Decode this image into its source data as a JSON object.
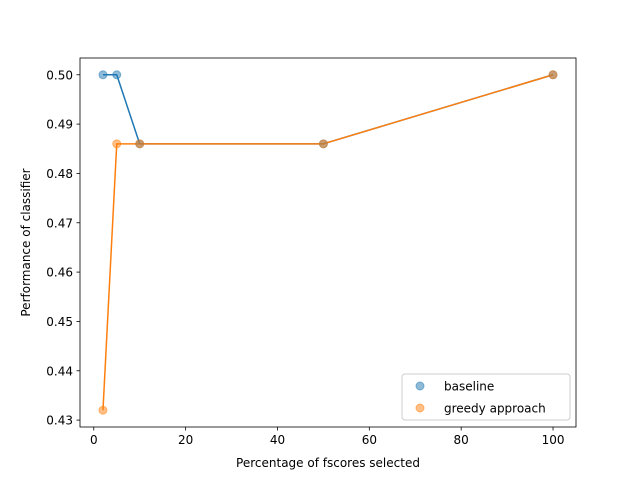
{
  "chart_data": {
    "type": "line",
    "title": "",
    "xlabel": "Percentage of fscores selected",
    "ylabel": "Performance of classifier",
    "xlim": [
      -3,
      105
    ],
    "ylim": [
      0.4286,
      0.5034
    ],
    "xticks": [
      0,
      20,
      40,
      60,
      80,
      100
    ],
    "yticks": [
      0.43,
      0.44,
      0.45,
      0.46,
      0.47,
      0.48,
      0.49,
      0.5
    ],
    "ytick_labels": [
      "0.43",
      "0.44",
      "0.45",
      "0.46",
      "0.47",
      "0.48",
      "0.49",
      "0.50"
    ],
    "grid": false,
    "legend_position": "lower-right",
    "series": [
      {
        "name": "baseline",
        "color": "#1f77b4",
        "x": [
          2,
          5,
          10,
          50,
          100
        ],
        "y": [
          0.5,
          0.5,
          0.486,
          0.486,
          0.5
        ]
      },
      {
        "name": "greedy approach",
        "color": "#ff7f0e",
        "x": [
          2,
          5,
          10,
          50,
          100
        ],
        "y": [
          0.432,
          0.486,
          0.486,
          0.486,
          0.5
        ]
      }
    ]
  }
}
